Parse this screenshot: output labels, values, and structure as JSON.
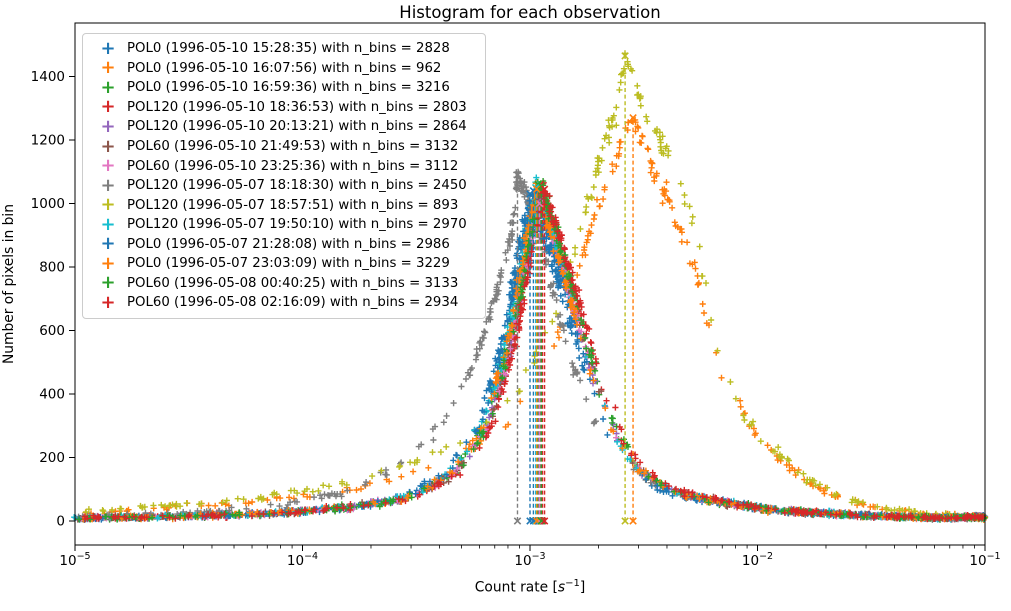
{
  "figure": {
    "title": "Histogram for each observation",
    "ylabel": "Number of pixels in bin",
    "xlabel_prefix": "Count rate [",
    "xlabel_var": "s",
    "xlabel_sup": "−1",
    "xlabel_suffix": "]"
  },
  "axes": {
    "x_tick_base": "10",
    "x_tick_exponents": [
      "−5",
      "−4",
      "−3",
      "−2",
      "−1"
    ],
    "y_tick_labels": [
      "0",
      "200",
      "400",
      "600",
      "800",
      "1000",
      "1200",
      "1400"
    ],
    "xlim_log10": [
      -5,
      -1
    ],
    "ylim": [
      -75,
      1568
    ],
    "grid": false,
    "legend_position": "upper-left"
  },
  "chart_data": {
    "type": "scatter",
    "title": "Histogram for each observation",
    "xlabel": "Count rate [s^-1]",
    "ylabel": "Number of pixels in bin",
    "xscale": "log",
    "marker": "+",
    "mode_line_style": "dashed",
    "series": [
      {
        "legend": "POL0 (1996-05-10 15:28:35) with n_bins = 2828",
        "n_bins": 2828,
        "color": "#1f77b4",
        "shape": "main",
        "mode_log10": -3.0,
        "peak": 1030,
        "n_markers": 330,
        "seed": 11
      },
      {
        "legend": "POL0 (1996-05-10 16:07:56) with n_bins = 962",
        "n_bins": 962,
        "color": "#ff7f0e",
        "shape": "orange2",
        "mode_log10": -2.547,
        "peak": 1270,
        "n_markers": 230,
        "seed": 22
      },
      {
        "legend": "POL0 (1996-05-10 16:59:36) with n_bins = 3216",
        "n_bins": 3216,
        "color": "#2ca02c",
        "shape": "main",
        "mode_log10": -2.965,
        "peak": 1060,
        "n_markers": 330,
        "seed": 33
      },
      {
        "legend": "POL120 (1996-05-10 18:36:53) with n_bins = 2803",
        "n_bins": 2803,
        "color": "#d62728",
        "shape": "main",
        "mode_log10": -2.945,
        "peak": 1040,
        "n_markers": 330,
        "seed": 44
      },
      {
        "legend": "POL120 (1996-05-10 20:13:21) with n_bins = 2864",
        "n_bins": 2864,
        "color": "#9467bd",
        "shape": "main",
        "mode_log10": -2.96,
        "peak": 1010,
        "n_markers": 330,
        "seed": 55
      },
      {
        "legend": "POL60 (1996-05-10 21:49:53) with n_bins = 3132",
        "n_bins": 3132,
        "color": "#8c564b",
        "shape": "main",
        "mode_log10": -2.955,
        "peak": 1020,
        "n_markers": 330,
        "seed": 66
      },
      {
        "legend": "POL60 (1996-05-10 23:25:36) with n_bins = 3112",
        "n_bins": 3112,
        "color": "#e377c2",
        "shape": "main",
        "mode_log10": -2.958,
        "peak": 1000,
        "n_markers": 330,
        "seed": 77
      },
      {
        "legend": "POL120 (1996-05-07 18:18:30) with n_bins = 2450",
        "n_bins": 2450,
        "color": "#7f7f7f",
        "shape": "gray",
        "mode_log10": -3.055,
        "peak": 1090,
        "n_markers": 330,
        "seed": 88
      },
      {
        "legend": "POL120 (1996-05-07 18:57:51) with n_bins = 893",
        "n_bins": 893,
        "color": "#bcbd22",
        "shape": "olive",
        "mode_log10": -2.582,
        "peak": 1465,
        "n_markers": 230,
        "seed": 99
      },
      {
        "legend": "POL120 (1996-05-07 19:50:10) with n_bins = 2970",
        "n_bins": 2970,
        "color": "#17becf",
        "shape": "main",
        "mode_log10": -2.975,
        "peak": 1050,
        "n_markers": 330,
        "seed": 110
      },
      {
        "legend": "POL0 (1996-05-07 21:28:08) with n_bins = 2986",
        "n_bins": 2986,
        "color": "#1f77b4",
        "shape": "main",
        "mode_log10": -2.985,
        "peak": 1040,
        "n_markers": 330,
        "seed": 121
      },
      {
        "legend": "POL0 (1996-05-07 23:03:09) with n_bins = 3229",
        "n_bins": 3229,
        "color": "#ff7f0e",
        "shape": "main",
        "mode_log10": -2.97,
        "peak": 1045,
        "n_markers": 330,
        "seed": 132
      },
      {
        "legend": "POL60 (1996-05-08 00:40:25) with n_bins = 3133",
        "n_bins": 3133,
        "color": "#2ca02c",
        "shape": "main",
        "mode_log10": -2.95,
        "peak": 1055,
        "n_markers": 330,
        "seed": 143
      },
      {
        "legend": "POL60 (1996-05-08 02:16:09) with n_bins = 2934",
        "n_bins": 2934,
        "color": "#d62728",
        "shape": "main",
        "mode_log10": -2.936,
        "peak": 1045,
        "n_markers": 330,
        "seed": 154
      }
    ],
    "shapes": {
      "main": [
        [
          -5,
          8
        ],
        [
          -4.5,
          15
        ],
        [
          -4.1,
          25
        ],
        [
          -3.8,
          42
        ],
        [
          -3.55,
          72
        ],
        [
          -3.35,
          145
        ],
        [
          -3.2,
          300
        ],
        [
          -3.1,
          550
        ],
        [
          -3.02,
          860
        ],
        [
          -2.97,
          1040
        ],
        [
          -2.9,
          890
        ],
        [
          -2.82,
          690
        ],
        [
          -2.72,
          440
        ],
        [
          -2.62,
          255
        ],
        [
          -2.52,
          155
        ],
        [
          -2.4,
          100
        ],
        [
          -2.25,
          72
        ],
        [
          -2.1,
          52
        ],
        [
          -1.9,
          33
        ],
        [
          -1.7,
          24
        ],
        [
          -1.45,
          15
        ],
        [
          -1.2,
          10
        ],
        [
          -1.01,
          13
        ]
      ],
      "gray": [
        [
          -5,
          14
        ],
        [
          -4.5,
          26
        ],
        [
          -4.1,
          48
        ],
        [
          -3.8,
          95
        ],
        [
          -3.6,
          160
        ],
        [
          -3.4,
          290
        ],
        [
          -3.25,
          490
        ],
        [
          -3.15,
          710
        ],
        [
          -3.08,
          920
        ],
        [
          -3.055,
          1090
        ],
        [
          -2.97,
          940
        ],
        [
          -2.89,
          690
        ],
        [
          -2.79,
          440
        ],
        [
          -2.69,
          270
        ],
        [
          -2.58,
          170
        ],
        [
          -2.43,
          108
        ],
        [
          -2.28,
          76
        ],
        [
          -2.1,
          52
        ],
        [
          -1.9,
          33
        ],
        [
          -1.7,
          23
        ],
        [
          -1.45,
          14
        ],
        [
          -1.2,
          9
        ],
        [
          -1.01,
          12
        ]
      ],
      "olive": [
        [
          -5,
          30
        ],
        [
          -4.6,
          48
        ],
        [
          -4.2,
          72
        ],
        [
          -3.9,
          105
        ],
        [
          -3.6,
          155
        ],
        [
          -3.35,
          230
        ],
        [
          -3.1,
          360
        ],
        [
          -2.9,
          620
        ],
        [
          -2.8,
          860
        ],
        [
          -2.7,
          1120
        ],
        [
          -2.62,
          1300
        ],
        [
          -2.582,
          1465
        ],
        [
          -2.5,
          1280
        ],
        [
          -2.42,
          1190
        ],
        [
          -2.35,
          1080
        ],
        [
          -2.28,
          950
        ],
        [
          -2.22,
          700
        ],
        [
          -2.17,
          520
        ],
        [
          -2.1,
          400
        ],
        [
          -2.0,
          265
        ],
        [
          -1.9,
          210
        ],
        [
          -1.8,
          140
        ],
        [
          -1.68,
          90
        ],
        [
          -1.5,
          48
        ],
        [
          -1.3,
          26
        ],
        [
          -1.1,
          15
        ],
        [
          -1.01,
          12
        ]
      ],
      "orange2": [
        [
          -5,
          24
        ],
        [
          -4.6,
          40
        ],
        [
          -4.2,
          60
        ],
        [
          -3.9,
          88
        ],
        [
          -3.6,
          130
        ],
        [
          -3.35,
          195
        ],
        [
          -3.1,
          310
        ],
        [
          -2.9,
          540
        ],
        [
          -2.8,
          760
        ],
        [
          -2.7,
          990
        ],
        [
          -2.62,
          1150
        ],
        [
          -2.547,
          1270
        ],
        [
          -2.47,
          1120
        ],
        [
          -2.4,
          1020
        ],
        [
          -2.33,
          900
        ],
        [
          -2.27,
          780
        ],
        [
          -2.21,
          600
        ],
        [
          -2.15,
          460
        ],
        [
          -2.08,
          360
        ],
        [
          -1.98,
          240
        ],
        [
          -1.88,
          185
        ],
        [
          -1.78,
          125
        ],
        [
          -1.66,
          80
        ],
        [
          -1.5,
          42
        ],
        [
          -1.3,
          23
        ],
        [
          -1.1,
          13
        ],
        [
          -1.01,
          10
        ]
      ]
    }
  }
}
